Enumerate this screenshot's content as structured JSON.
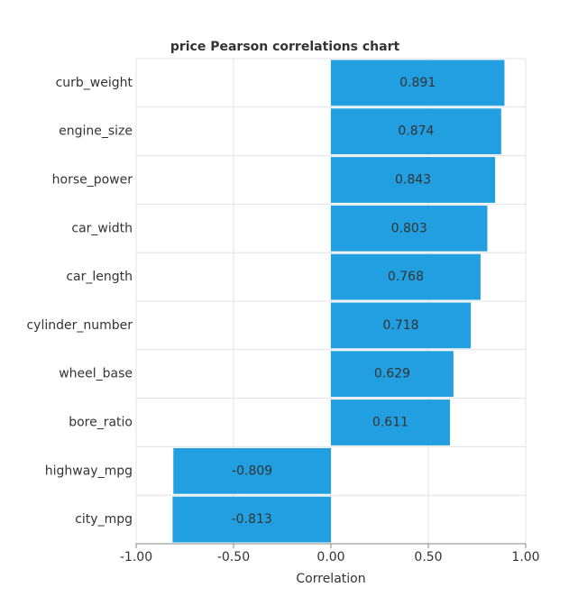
{
  "chart_data": {
    "type": "bar",
    "orientation": "horizontal",
    "title": "price Pearson correlations chart",
    "xlabel": "Correlation",
    "categories": [
      "curb_weight",
      "engine_size",
      "horse_power",
      "car_width",
      "car_length",
      "cylinder_number",
      "wheel_base",
      "bore_ratio",
      "highway_mpg",
      "city_mpg"
    ],
    "values": [
      0.891,
      0.874,
      0.843,
      0.803,
      0.768,
      0.718,
      0.629,
      0.611,
      -0.809,
      -0.813
    ],
    "color": "#219fe0",
    "xlim": [
      -1,
      1
    ],
    "xticks": [
      {
        "value": -1,
        "label": "-1.00"
      },
      {
        "value": -0.5,
        "label": "-0.50"
      },
      {
        "value": 0,
        "label": "0.00"
      },
      {
        "value": 0.5,
        "label": "0.50"
      },
      {
        "value": 1,
        "label": "1.00"
      }
    ],
    "grid": true
  }
}
